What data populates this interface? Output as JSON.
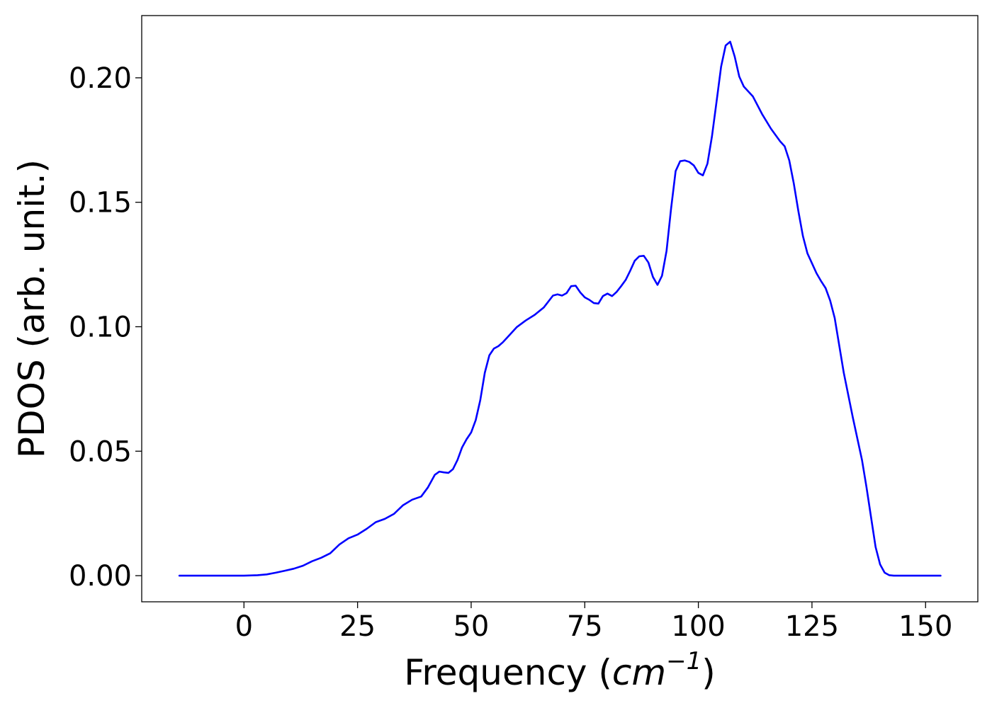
{
  "chart_data": {
    "type": "line",
    "title": "",
    "xlabel": "Frequency (",
    "xlabel_math": "cm",
    "xlabel_exponent": "−1",
    "xlabel_close": ")",
    "ylabel": "PDOS (arb. unit.)",
    "xlim": [
      -22.5,
      161.5
    ],
    "ylim": [
      -0.0105,
      0.225
    ],
    "x_ticks": [
      0,
      25,
      50,
      75,
      100,
      125,
      150
    ],
    "x_tick_labels": [
      "0",
      "25",
      "50",
      "75",
      "100",
      "125",
      "150"
    ],
    "y_ticks": [
      0.0,
      0.05,
      0.1,
      0.15,
      0.2
    ],
    "y_tick_labels": [
      "0.00",
      "0.05",
      "0.10",
      "0.15",
      "0.20"
    ],
    "grid": false,
    "legend": "none",
    "series": [
      {
        "color": "#0000ff",
        "x": [
          -14.2,
          -10,
          -5,
          0,
          3,
          5,
          7,
          9,
          11,
          13,
          15,
          17,
          19,
          21,
          23,
          25,
          27,
          29,
          31,
          33,
          35,
          37,
          39,
          40.5,
          42,
          43,
          44,
          45,
          46,
          47,
          48,
          49,
          50,
          51,
          52,
          53,
          54,
          55,
          56,
          57,
          58,
          59,
          60,
          62,
          64,
          66,
          68,
          69,
          70,
          71,
          72,
          73,
          74,
          75,
          76,
          77,
          78,
          79,
          80,
          81,
          82,
          83,
          84,
          85,
          86,
          87,
          88,
          89,
          90,
          91,
          92,
          93,
          94,
          95,
          96,
          97,
          98,
          99,
          100,
          101,
          102,
          103,
          104,
          105,
          106,
          107,
          108,
          109,
          110,
          112,
          114,
          116,
          118,
          119,
          120,
          121,
          122,
          123,
          124,
          125,
          126,
          127,
          128,
          129,
          130,
          132,
          134,
          136,
          137,
          138,
          139,
          140,
          141,
          142,
          143,
          145,
          150,
          153.3
        ],
        "y": [
          0.0,
          0.0,
          0.0,
          0.0,
          0.0002,
          0.0005,
          0.0012,
          0.002,
          0.0028,
          0.004,
          0.0058,
          0.0072,
          0.009,
          0.0125,
          0.015,
          0.0165,
          0.0188,
          0.0215,
          0.0228,
          0.0248,
          0.0283,
          0.0305,
          0.0318,
          0.0355,
          0.0405,
          0.0418,
          0.0415,
          0.0413,
          0.0428,
          0.0465,
          0.0515,
          0.0548,
          0.0575,
          0.0625,
          0.0705,
          0.0815,
          0.0885,
          0.0912,
          0.0922,
          0.0938,
          0.0958,
          0.0978,
          0.0998,
          0.1025,
          0.1048,
          0.1078,
          0.1125,
          0.113,
          0.1125,
          0.1135,
          0.1163,
          0.1165,
          0.1138,
          0.1118,
          0.1108,
          0.1095,
          0.1093,
          0.1123,
          0.1133,
          0.1123,
          0.114,
          0.1163,
          0.1188,
          0.1225,
          0.1265,
          0.1283,
          0.1285,
          0.1258,
          0.12,
          0.1168,
          0.1205,
          0.1305,
          0.1475,
          0.1625,
          0.1665,
          0.1668,
          0.1662,
          0.1648,
          0.1618,
          0.1608,
          0.1655,
          0.1765,
          0.1905,
          0.2045,
          0.213,
          0.2145,
          0.2085,
          0.2005,
          0.1965,
          0.1925,
          0.1855,
          0.1795,
          0.1745,
          0.1725,
          0.1668,
          0.1575,
          0.1465,
          0.1365,
          0.1295,
          0.1255,
          0.1215,
          0.1183,
          0.1155,
          0.1105,
          0.1035,
          0.0815,
          0.0635,
          0.0465,
          0.0355,
          0.0235,
          0.0115,
          0.0045,
          0.0012,
          0.0002,
          0.0,
          0.0,
          0.0,
          0.0
        ]
      }
    ]
  }
}
